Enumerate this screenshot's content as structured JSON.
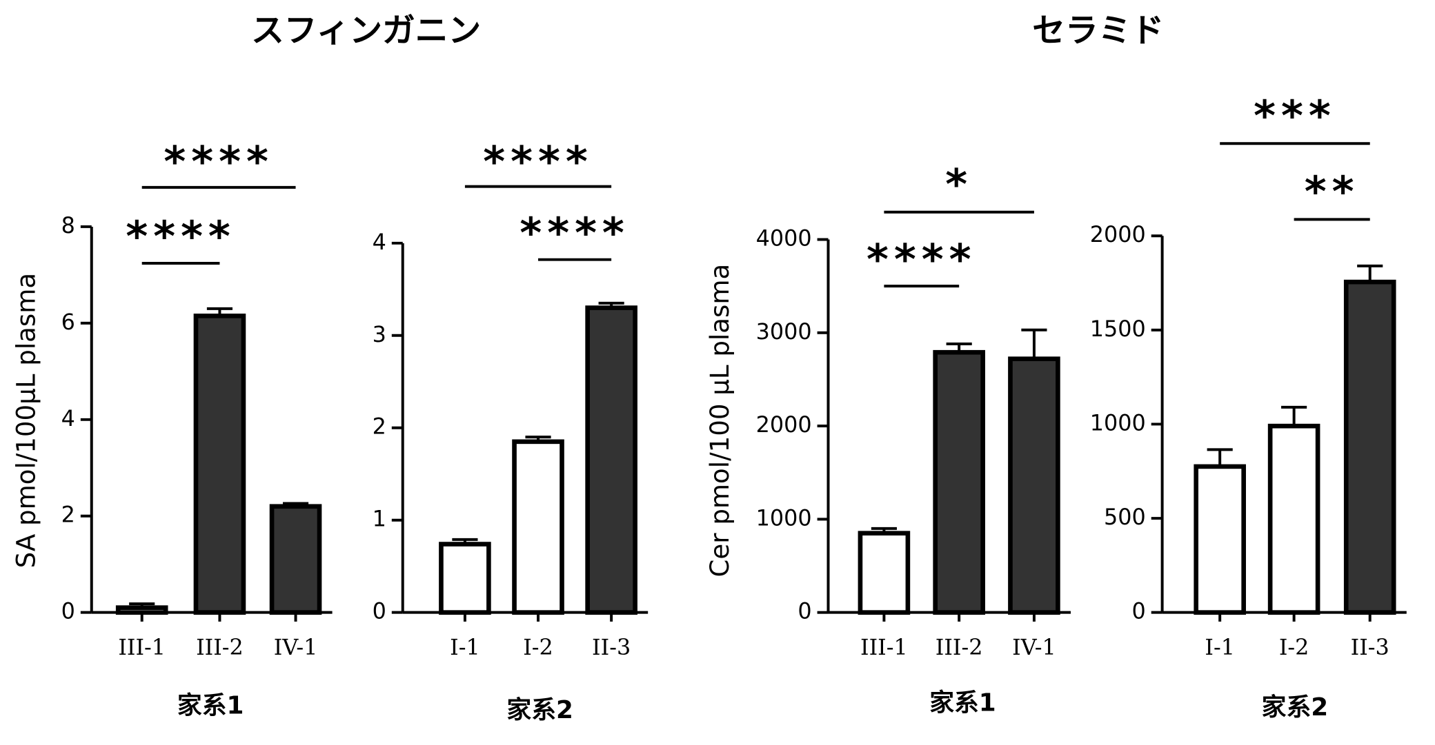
{
  "group_titles": [
    "スフィンガニン",
    "セラミド"
  ],
  "chart_data": [
    {
      "type": "bar",
      "ylabel": "SA pmol/100μL plasma",
      "xlabel": "家系1",
      "categories": [
        "III-1",
        "III-2",
        "IV-1"
      ],
      "values": [
        0.1,
        6.15,
        2.2
      ],
      "errors": [
        0.08,
        0.15,
        0.06
      ],
      "colors": [
        "#ffffff",
        "#333333",
        "#333333"
      ],
      "ylim": [
        0,
        8
      ],
      "yticks": [
        0,
        2,
        4,
        6,
        8
      ],
      "significance": [
        {
          "between": [
            "III-1",
            "III-2"
          ],
          "label": "****"
        },
        {
          "between": [
            "III-1",
            "IV-1"
          ],
          "label": "****"
        }
      ]
    },
    {
      "type": "bar",
      "xlabel": "家系2",
      "categories": [
        "I-1",
        "I-2",
        "II-3"
      ],
      "values": [
        0.74,
        1.85,
        3.3
      ],
      "errors": [
        0.05,
        0.05,
        0.05
      ],
      "colors": [
        "#ffffff",
        "#ffffff",
        "#333333"
      ],
      "ylim": [
        0,
        4
      ],
      "yticks": [
        0,
        1,
        2,
        3,
        4
      ],
      "significance": [
        {
          "between": [
            "I-2",
            "II-3"
          ],
          "label": "****"
        },
        {
          "between": [
            "I-1",
            "II-3"
          ],
          "label": "****"
        }
      ]
    },
    {
      "type": "bar",
      "ylabel": "Cer pmol/100 μL plasma",
      "xlabel": "家系1",
      "categories": [
        "III-1",
        "III-2",
        "IV-1"
      ],
      "values": [
        850,
        2790,
        2720
      ],
      "errors": [
        50,
        90,
        310
      ],
      "colors": [
        "#ffffff",
        "#333333",
        "#333333"
      ],
      "ylim": [
        0,
        4000
      ],
      "yticks": [
        0,
        1000,
        2000,
        3000,
        4000
      ],
      "significance": [
        {
          "between": [
            "III-1",
            "III-2"
          ],
          "label": "****"
        },
        {
          "between": [
            "III-1",
            "IV-1"
          ],
          "label": "*"
        }
      ]
    },
    {
      "type": "bar",
      "xlabel": "家系2",
      "categories": [
        "I-1",
        "I-2",
        "II-3"
      ],
      "values": [
        775,
        990,
        1755
      ],
      "errors": [
        90,
        100,
        85
      ],
      "colors": [
        "#ffffff",
        "#ffffff",
        "#333333"
      ],
      "ylim": [
        0,
        2000
      ],
      "yticks": [
        0,
        500,
        1000,
        1500,
        2000
      ],
      "significance": [
        {
          "between": [
            "I-2",
            "II-3"
          ],
          "label": "**"
        },
        {
          "between": [
            "I-1",
            "II-3"
          ],
          "label": "***"
        }
      ]
    }
  ]
}
